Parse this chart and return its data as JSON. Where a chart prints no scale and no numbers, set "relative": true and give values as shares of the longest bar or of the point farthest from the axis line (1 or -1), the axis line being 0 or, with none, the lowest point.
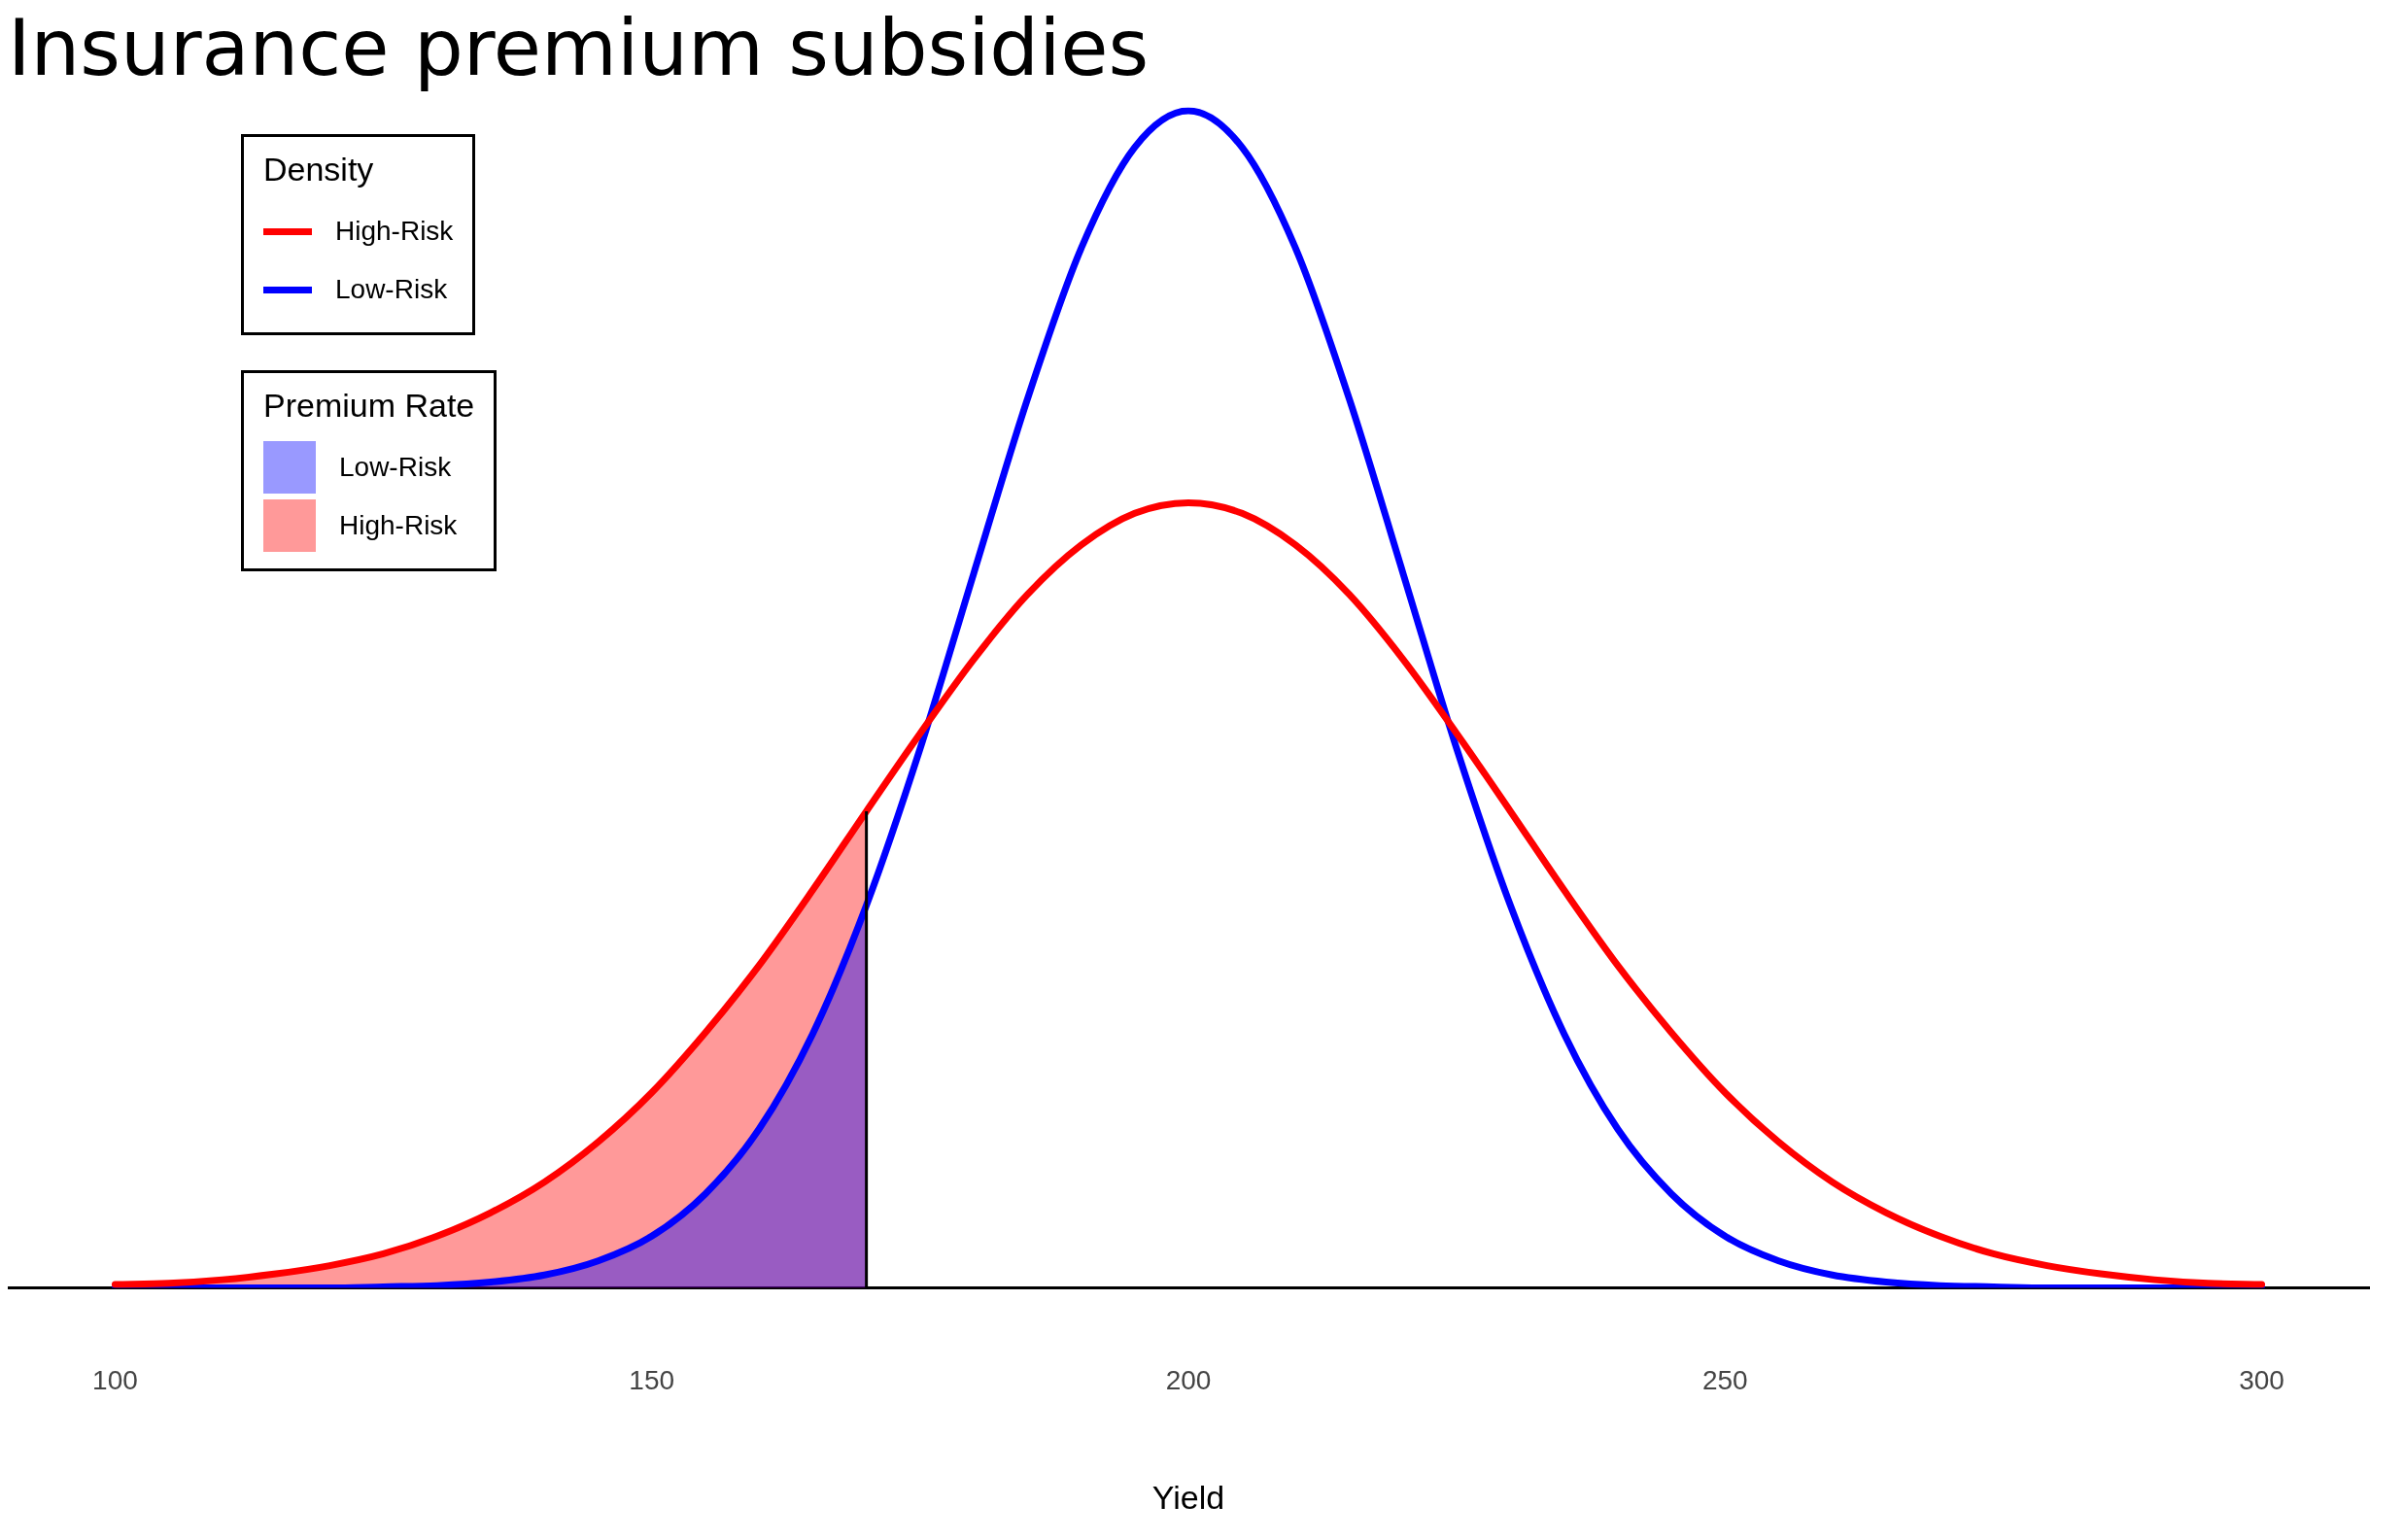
{
  "chart_data": {
    "type": "line",
    "title": "Insurance premium subsidies",
    "xlabel": "Yield",
    "relative": true,
    "xlim": [
      90,
      310
    ],
    "xticks": [
      100,
      150,
      200,
      250,
      300
    ],
    "grid": false,
    "legend": "top left",
    "legend_title": "Density",
    "marker": "none",
    "line_style": "solid",
    "annotations": [
      "Premium Rate"
    ],
    "ref_lines": [
      {
        "axis": "x",
        "value": 170,
        "color": "#000000"
      }
    ],
    "series": [
      {
        "name": "High-Risk",
        "type": "line",
        "color": "#ff0000",
        "x": [
          100,
          105,
          110,
          115,
          120,
          125,
          130,
          135,
          140,
          145,
          150,
          155,
          160,
          165,
          170,
          175,
          180,
          185,
          190,
          195,
          200,
          205,
          210,
          215,
          220,
          225,
          230,
          235,
          240,
          245,
          250,
          255,
          260,
          265,
          270,
          275,
          280,
          285,
          290,
          295,
          300
        ],
        "values": [
          0.003,
          0.004,
          0.007,
          0.012,
          0.019,
          0.029,
          0.044,
          0.064,
          0.09,
          0.124,
          0.166,
          0.217,
          0.274,
          0.338,
          0.405,
          0.471,
          0.534,
          0.589,
          0.631,
          0.658,
          0.667,
          0.658,
          0.631,
          0.589,
          0.534,
          0.471,
          0.405,
          0.338,
          0.274,
          0.217,
          0.166,
          0.124,
          0.09,
          0.064,
          0.044,
          0.029,
          0.019,
          0.012,
          0.007,
          0.004,
          0.003
        ]
      },
      {
        "name": "Low-Risk",
        "type": "line",
        "color": "#0000ff",
        "x": [
          100,
          105,
          110,
          115,
          120,
          125,
          130,
          135,
          140,
          145,
          150,
          155,
          160,
          165,
          170,
          175,
          180,
          185,
          190,
          195,
          200,
          205,
          210,
          215,
          220,
          225,
          230,
          235,
          240,
          245,
          250,
          255,
          260,
          265,
          270,
          275,
          280,
          285,
          290,
          295,
          300
        ],
        "values": [
          0,
          0,
          0,
          0,
          0,
          0.001,
          0.002,
          0.005,
          0.011,
          0.023,
          0.044,
          0.08,
          0.135,
          0.216,
          0.325,
          0.458,
          0.607,
          0.755,
          0.883,
          0.969,
          1,
          0.969,
          0.883,
          0.755,
          0.607,
          0.458,
          0.325,
          0.216,
          0.135,
          0.08,
          0.044,
          0.023,
          0.011,
          0.005,
          0.002,
          0.001,
          0,
          0,
          0,
          0,
          0
        ]
      },
      {
        "name": "Low-Risk",
        "type": "area",
        "color": "#9999ff",
        "x": [
          100,
          105,
          110,
          115,
          120,
          125,
          130,
          135,
          140,
          145,
          150,
          155,
          160,
          165,
          170
        ],
        "values": [
          0,
          0,
          0,
          0,
          0,
          0.001,
          0.002,
          0.005,
          0.011,
          0.023,
          0.044,
          0.08,
          0.135,
          0.216,
          0.325
        ]
      },
      {
        "name": "High-Risk",
        "type": "area",
        "color": "#ff9999",
        "x": [
          100,
          105,
          110,
          115,
          120,
          125,
          130,
          135,
          140,
          145,
          150,
          155,
          160,
          165,
          170
        ],
        "values": [
          0.003,
          0.004,
          0.007,
          0.012,
          0.019,
          0.029,
          0.044,
          0.064,
          0.09,
          0.124,
          0.166,
          0.217,
          0.274,
          0.338,
          0.405
        ]
      }
    ]
  }
}
